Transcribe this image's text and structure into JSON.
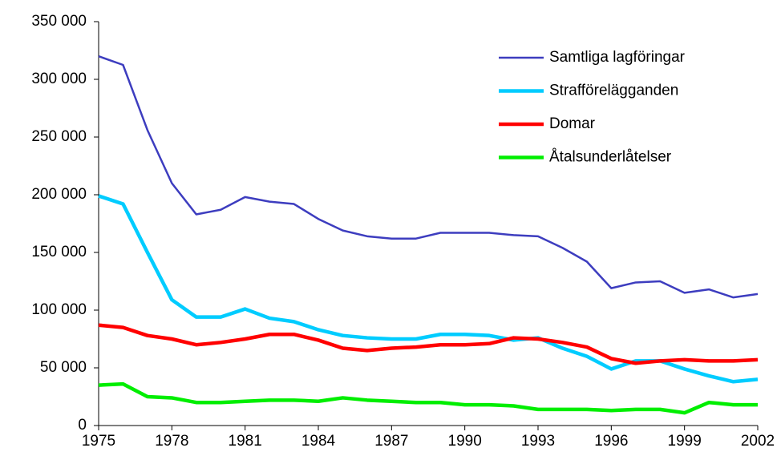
{
  "chart_data": {
    "type": "line",
    "x": [
      1975,
      1976,
      1977,
      1978,
      1979,
      1980,
      1981,
      1982,
      1983,
      1984,
      1985,
      1986,
      1987,
      1988,
      1989,
      1990,
      1991,
      1992,
      1993,
      1994,
      1995,
      1996,
      1997,
      1998,
      1999,
      2000,
      2001,
      2002
    ],
    "series": [
      {
        "name": "Samtliga lagföringar",
        "color": "#3d3dbf",
        "line_width": 2.5,
        "values": [
          320000,
          312500,
          256000,
          210000,
          183000,
          187000,
          198000,
          194000,
          192000,
          179000,
          169000,
          164000,
          162000,
          162000,
          167000,
          167000,
          167000,
          165000,
          164000,
          154000,
          142000,
          119000,
          124000,
          125000,
          115000,
          118000,
          111000,
          114000
        ]
      },
      {
        "name": "Strafförelägganden",
        "color": "#00ccff",
        "line_width": 4.5,
        "values": [
          199000,
          192000,
          150000,
          109000,
          94000,
          94000,
          101000,
          93000,
          90000,
          83000,
          78000,
          76000,
          75000,
          75000,
          79000,
          79000,
          78000,
          74000,
          76000,
          67000,
          60000,
          49000,
          56000,
          56000,
          49000,
          43000,
          38000,
          40000
        ]
      },
      {
        "name": "Domar",
        "color": "#ff0000",
        "line_width": 4.5,
        "values": [
          87000,
          85000,
          78000,
          75000,
          70000,
          72000,
          75000,
          79000,
          79000,
          74000,
          67000,
          65000,
          67000,
          68000,
          70000,
          70000,
          71000,
          76000,
          75000,
          72000,
          68000,
          58000,
          54000,
          56000,
          57000,
          56000,
          56000,
          57000
        ]
      },
      {
        "name": "Åtalsunderlåtelser",
        "color": "#00ee00",
        "line_width": 4.5,
        "values": [
          35000,
          36000,
          25000,
          24000,
          20000,
          20000,
          21000,
          22000,
          22000,
          21000,
          24000,
          22000,
          21000,
          20000,
          20000,
          18000,
          18000,
          17000,
          14000,
          14000,
          14000,
          13000,
          14000,
          14000,
          11000,
          20000,
          18000,
          18000
        ]
      }
    ],
    "xlim": [
      1975,
      2002
    ],
    "xticks": [
      1975,
      1978,
      1981,
      1984,
      1987,
      1990,
      1993,
      1996,
      1999,
      2002
    ],
    "ylim": [
      0,
      350000
    ],
    "yticks": [
      {
        "value": 0,
        "label": "0"
      },
      {
        "value": 50000,
        "label": "50 000"
      },
      {
        "value": 100000,
        "label": "100 000"
      },
      {
        "value": 150000,
        "label": "150 000"
      },
      {
        "value": 200000,
        "label": "200 000"
      },
      {
        "value": 250000,
        "label": "250 000"
      },
      {
        "value": 300000,
        "label": "300 000"
      },
      {
        "value": 350000,
        "label": "350 000"
      }
    ],
    "grid": false,
    "legend": "upper right"
  }
}
